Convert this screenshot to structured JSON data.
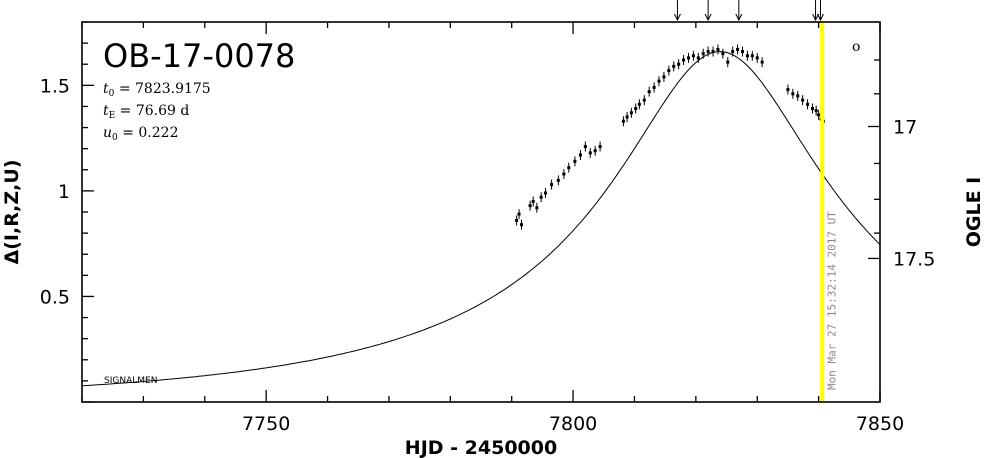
{
  "chart_data": {
    "type": "scatter",
    "title": "OB-17-0078",
    "xlabel": "HJD - 2450000",
    "ylabel_left": "Δ(I,R,Z,U)",
    "ylabel_right": "OGLE I",
    "xlim": [
      7720,
      7850
    ],
    "ylim": [
      0.0,
      1.8
    ],
    "x_ticks": [
      7750,
      7800,
      7850
    ],
    "y_ticks": [
      "1.5",
      "1",
      "0.5"
    ],
    "y_tick_values": [
      1.5,
      1.0,
      0.5
    ],
    "right_ticks": [
      "17",
      "17.5"
    ],
    "right_tick_values": [
      1.305,
      0.68
    ],
    "params": [
      {
        "sym": "t",
        "sub": "0",
        "text": " = 7823.9175"
      },
      {
        "sym": "t",
        "sub": "E",
        "text": " = 76.69 d"
      },
      {
        "sym": "u",
        "sub": "0",
        "text": " = 0.222"
      }
    ],
    "model": {
      "t0": 7823.9175,
      "tE": 76.69,
      "u0": 0.222
    },
    "marker": "o",
    "credit": "SIGNALMEN",
    "vertical_line": {
      "x": 7840.6,
      "color": "#ffff00",
      "label": "Mon Mar 27 15:32:14 2017 UT"
    },
    "arrows_x": [
      7817,
      7822,
      7827,
      7839.5,
      7840.3
    ],
    "points": [
      [
        7790.8,
        0.86
      ],
      [
        7791.2,
        0.89
      ],
      [
        7791.6,
        0.84
      ],
      [
        7793.0,
        0.93
      ],
      [
        7793.5,
        0.95
      ],
      [
        7794.1,
        0.92
      ],
      [
        7794.8,
        0.97
      ],
      [
        7795.5,
        0.99
      ],
      [
        7796.5,
        1.03
      ],
      [
        7797.6,
        1.05
      ],
      [
        7798.5,
        1.08
      ],
      [
        7799.3,
        1.11
      ],
      [
        7800.3,
        1.14
      ],
      [
        7801.2,
        1.17
      ],
      [
        7802.0,
        1.21
      ],
      [
        7802.8,
        1.18
      ],
      [
        7803.6,
        1.19
      ],
      [
        7804.4,
        1.21
      ],
      [
        7808.2,
        1.33
      ],
      [
        7808.8,
        1.35
      ],
      [
        7809.5,
        1.37
      ],
      [
        7810.2,
        1.39
      ],
      [
        7810.8,
        1.41
      ],
      [
        7811.6,
        1.43
      ],
      [
        7812.4,
        1.47
      ],
      [
        7813.2,
        1.49
      ],
      [
        7814.0,
        1.52
      ],
      [
        7814.8,
        1.54
      ],
      [
        7815.6,
        1.57
      ],
      [
        7816.4,
        1.59
      ],
      [
        7817.2,
        1.6
      ],
      [
        7818.0,
        1.62
      ],
      [
        7818.8,
        1.63
      ],
      [
        7819.6,
        1.64
      ],
      [
        7820.4,
        1.63
      ],
      [
        7821.2,
        1.65
      ],
      [
        7822.0,
        1.66
      ],
      [
        7822.8,
        1.66
      ],
      [
        7823.6,
        1.67
      ],
      [
        7824.4,
        1.65
      ],
      [
        7825.2,
        1.61
      ],
      [
        7826.0,
        1.66
      ],
      [
        7826.8,
        1.67
      ],
      [
        7827.6,
        1.66
      ],
      [
        7828.4,
        1.64
      ],
      [
        7829.2,
        1.64
      ],
      [
        7830.0,
        1.63
      ],
      [
        7830.8,
        1.61
      ],
      [
        7835.0,
        1.48
      ],
      [
        7835.8,
        1.46
      ],
      [
        7836.6,
        1.45
      ],
      [
        7837.4,
        1.43
      ],
      [
        7838.2,
        1.41
      ],
      [
        7839.0,
        1.39
      ],
      [
        7839.6,
        1.38
      ],
      [
        7840.0,
        1.36
      ],
      [
        7840.4,
        1.34
      ],
      [
        7840.8,
        1.33
      ]
    ]
  }
}
